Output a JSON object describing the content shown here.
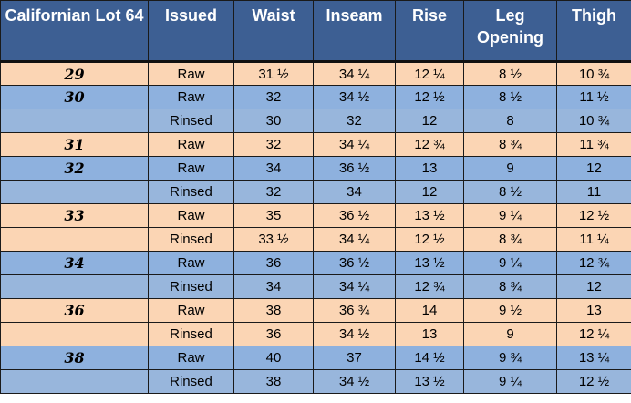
{
  "headers": {
    "lot": "Californian Lot 64",
    "issued": "Issued",
    "waist": "Waist",
    "inseam": "Inseam",
    "rise": "Rise",
    "leg_opening": "Leg Opening",
    "thigh": "Thigh"
  },
  "colors": {
    "header_bg": "#3d5f93",
    "row_peach": "#fbd5b4",
    "row_blue": "#8eb1de"
  },
  "rows": [
    {
      "size": "29",
      "issued": "Raw",
      "waist": "31 ½",
      "inseam": "34 ¼",
      "rise": "12 ¼",
      "leg_opening": "8 ½",
      "thigh": "10 ¾"
    },
    {
      "size": "30",
      "issued": "Raw",
      "waist": "32",
      "inseam": "34 ½",
      "rise": "12 ½",
      "leg_opening": "8 ½",
      "thigh": "11 ½"
    },
    {
      "size": "",
      "issued": "Rinsed",
      "waist": "30",
      "inseam": "32",
      "rise": "12",
      "leg_opening": "8",
      "thigh": "10 ¾"
    },
    {
      "size": "31",
      "issued": "Raw",
      "waist": "32",
      "inseam": "34 ¼",
      "rise": "12 ¾",
      "leg_opening": "8 ¾",
      "thigh": "11 ¾"
    },
    {
      "size": "32",
      "issued": "Raw",
      "waist": "34",
      "inseam": "36 ½",
      "rise": "13",
      "leg_opening": "9",
      "thigh": "12"
    },
    {
      "size": "",
      "issued": "Rinsed",
      "waist": "32",
      "inseam": "34",
      "rise": "12",
      "leg_opening": "8 ½",
      "thigh": "11"
    },
    {
      "size": "33",
      "issued": "Raw",
      "waist": "35",
      "inseam": "36 ½",
      "rise": "13 ½",
      "leg_opening": "9 ¼",
      "thigh": "12 ½"
    },
    {
      "size": "",
      "issued": "Rinsed",
      "waist": "33 ½",
      "inseam": "34 ¼",
      "rise": "12 ½",
      "leg_opening": "8 ¾",
      "thigh": "11 ¼"
    },
    {
      "size": "34",
      "issued": "Raw",
      "waist": "36",
      "inseam": "36 ½",
      "rise": "13 ½",
      "leg_opening": "9 ¼",
      "thigh": "12 ¾"
    },
    {
      "size": "",
      "issued": "Rinsed",
      "waist": "34",
      "inseam": "34 ¼",
      "rise": "12 ¾",
      "leg_opening": "8 ¾",
      "thigh": "12"
    },
    {
      "size": "36",
      "issued": "Raw",
      "waist": "38",
      "inseam": "36 ¾",
      "rise": "14",
      "leg_opening": "9 ½",
      "thigh": "13"
    },
    {
      "size": "",
      "issued": "Rinsed",
      "waist": "36",
      "inseam": "34 ½",
      "rise": "13",
      "leg_opening": "9",
      "thigh": "12 ¼"
    },
    {
      "size": "38",
      "issued": "Raw",
      "waist": "40",
      "inseam": "37",
      "rise": "14 ½",
      "leg_opening": "9 ¾",
      "thigh": "13 ¼"
    },
    {
      "size": "",
      "issued": "Rinsed",
      "waist": "38",
      "inseam": "34 ½",
      "rise": "13 ½",
      "leg_opening": "9 ¼",
      "thigh": "12 ½"
    }
  ]
}
